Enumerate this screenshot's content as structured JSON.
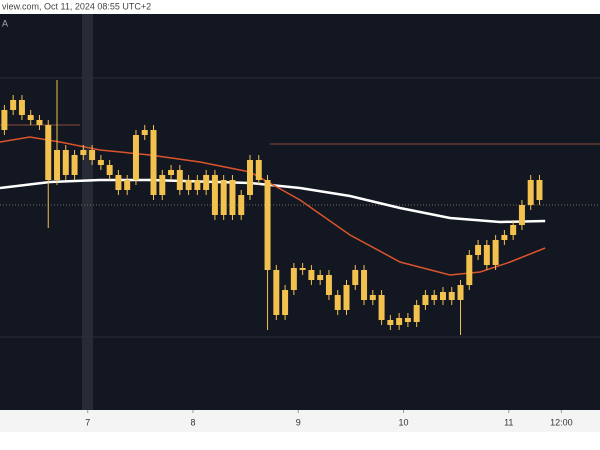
{
  "chart_data": {
    "type": "candlestick",
    "title": "view.com, Oct 11, 2024 08:55 UTC+2",
    "subtitle": "A",
    "color": "#f2c14e",
    "x": [
      1,
      3,
      5,
      7,
      9,
      11,
      13,
      15,
      17,
      19,
      21,
      23,
      25,
      27,
      29,
      31,
      33,
      35,
      37,
      39,
      41,
      43,
      45,
      47,
      49,
      51,
      53,
      55,
      57,
      59,
      61,
      63,
      65,
      67,
      69,
      71,
      73,
      75,
      77,
      79,
      81,
      83,
      85,
      87,
      89,
      91,
      93,
      95,
      97,
      99,
      101,
      103,
      105,
      107,
      109,
      111,
      113,
      115,
      117,
      119,
      121,
      123
    ],
    "open": [
      280,
      300,
      310,
      295,
      290,
      285,
      230,
      260,
      235,
      255,
      260,
      250,
      245,
      235,
      220,
      230,
      275,
      280,
      215,
      235,
      240,
      220,
      230,
      220,
      235,
      195,
      230,
      195,
      215,
      250,
      230,
      140,
      95,
      120,
      142,
      140,
      130,
      135,
      115,
      100,
      125,
      140,
      110,
      115,
      90,
      85,
      92,
      88,
      105,
      115,
      110,
      118,
      110,
      125,
      155,
      165,
      145,
      170,
      175,
      185,
      205,
      230
    ],
    "high": [
      305,
      315,
      315,
      300,
      295,
      290,
      330,
      265,
      260,
      265,
      265,
      255,
      250,
      240,
      235,
      280,
      285,
      285,
      240,
      245,
      245,
      235,
      235,
      240,
      240,
      235,
      235,
      220,
      255,
      255,
      235,
      145,
      125,
      147,
      147,
      145,
      140,
      140,
      120,
      130,
      145,
      145,
      120,
      120,
      95,
      97,
      97,
      110,
      120,
      120,
      123,
      123,
      130,
      160,
      170,
      170,
      175,
      180,
      190,
      210,
      235,
      235
    ],
    "low": [
      275,
      295,
      290,
      285,
      280,
      182,
      225,
      230,
      230,
      250,
      245,
      240,
      230,
      215,
      215,
      225,
      270,
      210,
      210,
      230,
      215,
      215,
      215,
      215,
      190,
      190,
      190,
      190,
      210,
      225,
      80,
      90,
      90,
      115,
      135,
      125,
      125,
      110,
      95,
      95,
      120,
      105,
      105,
      85,
      80,
      80,
      83,
      83,
      100,
      105,
      105,
      105,
      75,
      120,
      150,
      140,
      140,
      165,
      170,
      180,
      200,
      205
    ],
    "close": [
      300,
      310,
      295,
      290,
      285,
      230,
      260,
      235,
      255,
      260,
      250,
      245,
      235,
      220,
      230,
      275,
      280,
      215,
      235,
      240,
      220,
      230,
      220,
      235,
      195,
      230,
      195,
      215,
      250,
      230,
      140,
      95,
      120,
      142,
      140,
      130,
      135,
      115,
      100,
      125,
      140,
      110,
      115,
      90,
      85,
      92,
      88,
      105,
      115,
      110,
      118,
      110,
      125,
      155,
      165,
      145,
      170,
      175,
      185,
      205,
      230,
      210
    ],
    "series": [
      {
        "color": "#ffffff",
        "x": [
          0,
          11.4,
          22.8,
          34.2,
          57,
          68.4,
          79.8,
          91.2,
          102.6,
          114,
          124.3
        ],
        "values": [
          222,
          228,
          230,
          230,
          227,
          222,
          214,
          202,
          192,
          188,
          189
        ]
      },
      {
        "color": "#d9542c",
        "x": [
          0,
          6.8,
          13.7,
          22.8,
          34.2,
          45.6,
          57,
          68.4,
          79.8,
          91.2,
          102.6,
          109.5,
          116.3,
          124.3
        ],
        "values": [
          268,
          273,
          268,
          260,
          255,
          248,
          238,
          210,
          175,
          148,
          135,
          138,
          148,
          162
        ]
      }
    ],
    "xlim": [
      0,
      136.8
    ],
    "ylim": [
      0,
      396
    ],
    "xticks": [
      {
        "value": 20,
        "label": "7"
      },
      {
        "value": 44,
        "label": "8"
      },
      {
        "value": 68,
        "label": "9"
      },
      {
        "value": 92,
        "label": "10"
      },
      {
        "value": 116,
        "label": "11"
      },
      {
        "value": 128,
        "label": "12:00"
      }
    ]
  }
}
